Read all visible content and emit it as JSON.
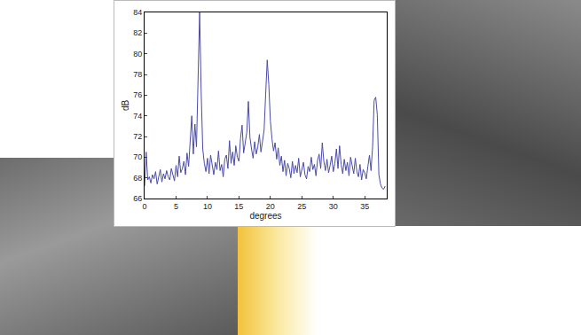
{
  "chart_data": {
    "type": "line",
    "x_label": "degrees",
    "y_label": "dB",
    "color": "#4b4ba8",
    "grid": false,
    "xlim": [
      0,
      38.5
    ],
    "xticks": [
      0,
      5,
      10,
      15,
      20,
      25,
      30,
      35
    ],
    "ylim": [
      66,
      84
    ],
    "yticks": [
      66,
      68,
      70,
      72,
      74,
      76,
      78,
      80,
      82,
      84
    ],
    "x": [
      0,
      0.25,
      0.5,
      0.75,
      1,
      1.25,
      1.5,
      1.75,
      2,
      2.25,
      2.5,
      2.75,
      3,
      3.25,
      3.5,
      3.75,
      4,
      4.25,
      4.5,
      4.75,
      5,
      5.25,
      5.5,
      5.75,
      6,
      6.25,
      6.5,
      6.75,
      7,
      7.25,
      7.5,
      7.75,
      8,
      8.25,
      8.5,
      8.75,
      9,
      9.25,
      9.5,
      9.75,
      10,
      10.25,
      10.5,
      10.75,
      11,
      11.25,
      11.5,
      11.75,
      12,
      12.25,
      12.5,
      12.75,
      13,
      13.25,
      13.5,
      13.75,
      14,
      14.25,
      14.5,
      14.75,
      15,
      15.25,
      15.5,
      15.75,
      16,
      16.25,
      16.5,
      16.75,
      17,
      17.25,
      17.5,
      17.75,
      18,
      18.25,
      18.5,
      18.75,
      19,
      19.25,
      19.5,
      19.75,
      20,
      20.25,
      20.5,
      20.75,
      21,
      21.25,
      21.5,
      21.75,
      22,
      22.25,
      22.5,
      22.75,
      23,
      23.25,
      23.5,
      23.75,
      24,
      24.25,
      24.5,
      24.75,
      25,
      25.25,
      25.5,
      25.75,
      26,
      26.25,
      26.5,
      26.75,
      27,
      27.25,
      27.5,
      27.75,
      28,
      28.25,
      28.5,
      28.75,
      29,
      29.25,
      29.5,
      29.75,
      30,
      30.25,
      30.5,
      30.75,
      31,
      31.25,
      31.5,
      31.75,
      32,
      32.25,
      32.5,
      32.75,
      33,
      33.25,
      33.5,
      33.75,
      34,
      34.25,
      34.5,
      34.75,
      35,
      35.25,
      35.5,
      35.75,
      36,
      36.25,
      36.5,
      36.75,
      37,
      37.25,
      37.5,
      37.75,
      38,
      38.25
    ],
    "values": [
      67.2,
      70.5,
      67.8,
      68.1,
      67.5,
      68.3,
      67.9,
      68.6,
      67.4,
      68.2,
      68.8,
      67.6,
      68.4,
      67.9,
      68.7,
      68.1,
      67.8,
      68.9,
      68.3,
      67.7,
      69.2,
      68.1,
      70.1,
      68.5,
      68.9,
      69.6,
      68.3,
      70.4,
      69.1,
      71.2,
      74.0,
      70.3,
      73.2,
      71.0,
      76.5,
      84.0,
      76.2,
      70.8,
      69.4,
      68.6,
      69.9,
      68.4,
      70.2,
      69.1,
      68.3,
      69.5,
      68.8,
      70.6,
      68.7,
      69.3,
      68.1,
      69.8,
      70.2,
      68.9,
      71.6,
      69.4,
      70.5,
      69.2,
      71.1,
      70.0,
      69.6,
      71.8,
      73.1,
      70.4,
      71.3,
      72.4,
      75.4,
      71.9,
      70.8,
      69.9,
      71.5,
      70.3,
      71.0,
      72.2,
      70.5,
      71.7,
      72.6,
      76.1,
      79.4,
      77.0,
      73.5,
      71.8,
      70.6,
      71.4,
      69.8,
      70.9,
      69.2,
      70.1,
      68.6,
      69.7,
      68.2,
      69.4,
      68.9,
      68.0,
      69.6,
      68.4,
      69.2,
      68.5,
      69.9,
      68.1,
      68.7,
      69.5,
      68.3,
      67.9,
      69.1,
      68.6,
      70.0,
      68.8,
      69.3,
      68.2,
      69.7,
      70.3,
      68.9,
      71.4,
      69.6,
      68.7,
      69.8,
      68.5,
      69.2,
      70.1,
      68.6,
      69.4,
      70.8,
      68.9,
      71.1,
      69.3,
      68.4,
      69.8,
      68.7,
      69.5,
      68.2,
      70.0,
      69.2,
      68.4,
      69.9,
      68.6,
      68.1,
      69.3,
      67.8,
      68.8,
      68.5,
      67.9,
      69.1,
      70.2,
      68.7,
      71.0,
      75.5,
      75.8,
      74.1,
      68.3,
      67.4,
      67.0,
      66.9,
      67.2
    ]
  }
}
